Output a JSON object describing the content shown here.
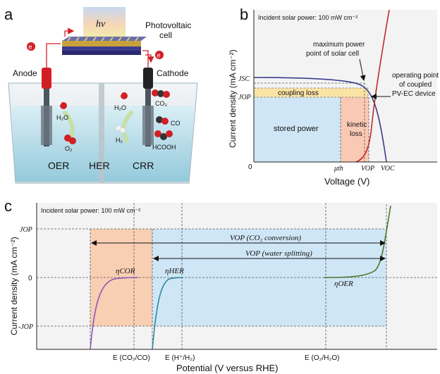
{
  "panel_a": {
    "letter": "a",
    "hv": "hv",
    "photovoltaic_cell": [
      "Photovoltaic",
      "cell"
    ],
    "anode": "Anode",
    "cathode": "Cathode",
    "electron": "e",
    "species": {
      "h2o_left": "H₂O",
      "o2": "O₂",
      "h2o_mid": "H₂O",
      "h2": "H₂",
      "co2": "CO₂",
      "co": "CO",
      "hcooh": "HCOOH"
    },
    "reactions": [
      "OER",
      "HER",
      "CRR"
    ]
  },
  "panel_b": {
    "letter": "b",
    "incident": "Incident solar power: 100 mW cm⁻²",
    "mpp_label": [
      "maximum power",
      "point of solar cell"
    ],
    "op_label": [
      "operating point",
      "of coupled",
      "PV-EC device"
    ],
    "coupling_loss": "coupling loss",
    "stored_power": "stored power",
    "kinetic_loss": [
      "kinetic",
      "loss"
    ],
    "ylabel": "Current density (mA cm⁻²)",
    "xlabel": "Voltage (V)",
    "jsc": "JSC",
    "jop": "JOP",
    "zero": "0",
    "mu_th": "μth",
    "vop": "VOP",
    "voc": "VOC",
    "colors": {
      "pv": "#3a3a8c",
      "ec": "#c0282b",
      "coupling": "#fbe3a6",
      "stored": "#cfe6f6",
      "kinetic": "#f9c9b4"
    }
  },
  "panel_c": {
    "letter": "c",
    "incident": "Incident solar power: 100 mW cm⁻²",
    "ylabel": "Current density (mA cm⁻²)",
    "xlabel": "Potential (V versus RHE)",
    "jop_top": "JOP",
    "zero": "0",
    "jop_bottom": "-JOP",
    "vop_co2": "VOP (CO₂ conversion)",
    "vop_water": "VOP (water splitting)",
    "eta_cor": "ηCOR",
    "eta_her": "ηHER",
    "eta_oer": "ηOER",
    "ticks": [
      "E (CO₂/CO)",
      "E (H⁺/H₂)",
      "E (O₂/H₂O)"
    ],
    "colors": {
      "cor": "#8e55b6",
      "her": "#2b8a9c",
      "oer": "#4a7a2c",
      "orange": "#f9cfb4",
      "blue": "#cfe6f6"
    }
  }
}
